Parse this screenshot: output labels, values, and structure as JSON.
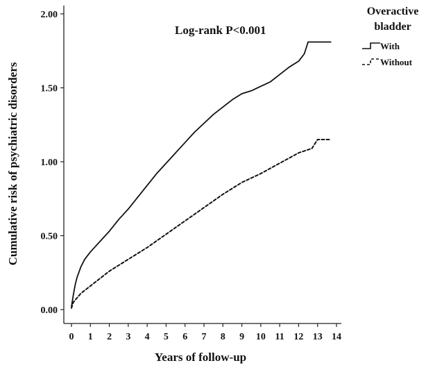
{
  "chart_data": {
    "type": "line",
    "xlabel": "Years of follow-up",
    "ylabel": "Cumulative risk of psychiatric disorders",
    "xlim": [
      0,
      14
    ],
    "ylim": [
      0,
      2.0
    ],
    "x_ticks": [
      "0",
      "1",
      "2",
      "3",
      "4",
      "5",
      "6",
      "7",
      "8",
      "9",
      "10",
      "11",
      "12",
      "13",
      "14"
    ],
    "y_ticks": [
      "0.00",
      "0.50",
      "1.00",
      "1.50",
      "2.00"
    ],
    "grid": false,
    "annotation": "Log-rank P<0.001",
    "legend": {
      "title_line1": "Overactive",
      "title_line2": "bladder",
      "placement": "top-right"
    },
    "series": [
      {
        "name": "With",
        "style": "solid",
        "color": "#111111",
        "x": [
          0,
          0.1,
          0.2,
          0.3,
          0.5,
          0.7,
          1,
          1.5,
          2,
          2.5,
          3,
          3.5,
          4,
          4.5,
          5,
          5.5,
          6,
          6.5,
          7,
          7.5,
          8,
          8.5,
          9,
          9.5,
          10,
          10.5,
          11,
          11.5,
          12,
          12.3,
          12.5,
          13,
          13.7
        ],
        "y": [
          0.02,
          0.1,
          0.17,
          0.22,
          0.29,
          0.34,
          0.39,
          0.46,
          0.53,
          0.61,
          0.68,
          0.76,
          0.84,
          0.92,
          0.99,
          1.06,
          1.13,
          1.2,
          1.26,
          1.32,
          1.37,
          1.42,
          1.46,
          1.48,
          1.51,
          1.54,
          1.59,
          1.64,
          1.68,
          1.73,
          1.81,
          1.81,
          1.81
        ]
      },
      {
        "name": "Without",
        "style": "dashed",
        "color": "#111111",
        "x": [
          0,
          0.1,
          0.3,
          0.5,
          1,
          1.5,
          2,
          3,
          4,
          5,
          6,
          7,
          8,
          9,
          10,
          11,
          12,
          12.7,
          13,
          13.7
        ],
        "y": [
          0.01,
          0.05,
          0.08,
          0.11,
          0.16,
          0.21,
          0.26,
          0.34,
          0.42,
          0.51,
          0.6,
          0.69,
          0.78,
          0.86,
          0.92,
          0.99,
          1.06,
          1.09,
          1.15,
          1.15
        ]
      }
    ]
  }
}
